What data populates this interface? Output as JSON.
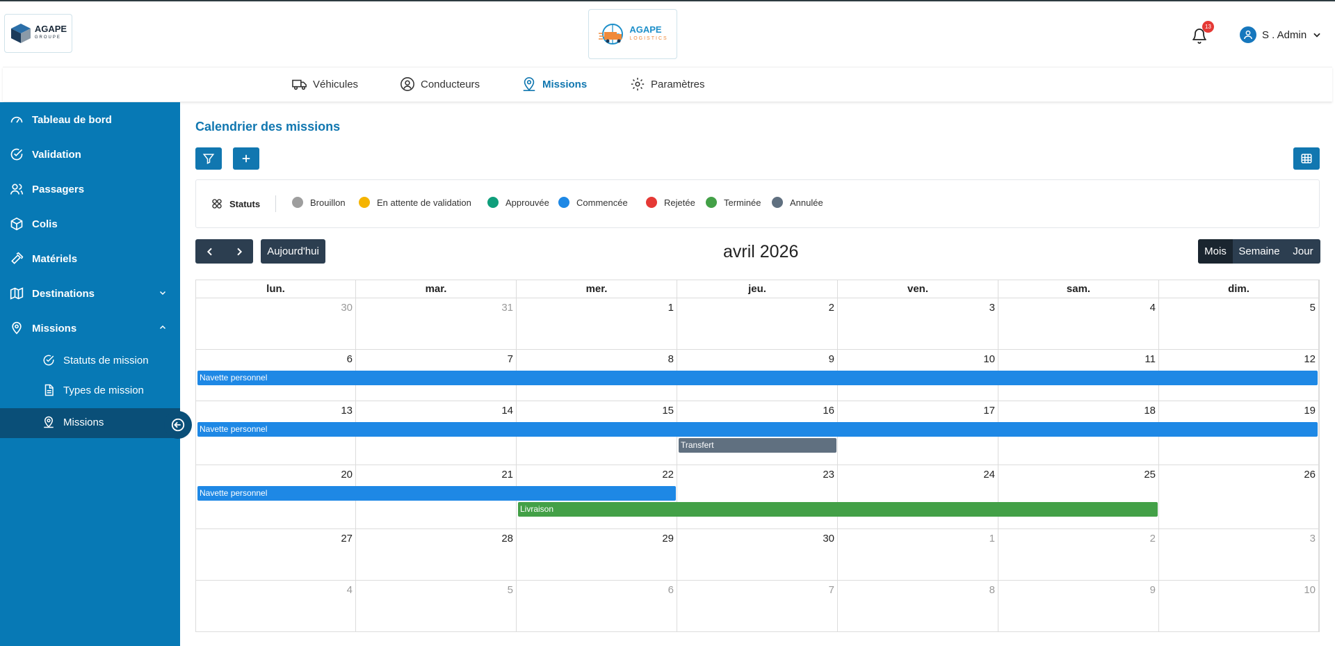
{
  "header": {
    "left_logo": {
      "name": "AGAPE",
      "sub": "GROUPE"
    },
    "center_logo": {
      "name": "AGAPE",
      "sub": "LOGISTICS"
    },
    "notifications_count": "13",
    "user_name": "S . Admin"
  },
  "topnav": [
    {
      "label": "Véhicules",
      "icon": "truck-icon"
    },
    {
      "label": "Conducteurs",
      "icon": "user-circle-icon"
    },
    {
      "label": "Missions",
      "icon": "map-pin-user-icon",
      "active": true
    },
    {
      "label": "Paramètres",
      "icon": "gear-icon"
    }
  ],
  "sidebar": {
    "items": [
      {
        "label": "Tableau de bord",
        "icon": "gauge-icon"
      },
      {
        "label": "Validation",
        "icon": "check-circle-icon"
      },
      {
        "label": "Passagers",
        "icon": "users-icon"
      },
      {
        "label": "Colis",
        "icon": "package-icon"
      },
      {
        "label": "Matériels",
        "icon": "hammer-icon"
      },
      {
        "label": "Destinations",
        "icon": "map-icon",
        "expandable": true
      },
      {
        "label": "Missions",
        "icon": "map-pin-user-icon",
        "expanded": true
      }
    ],
    "subitems": [
      {
        "label": "Statuts de mission",
        "icon": "check-circle-icon"
      },
      {
        "label": "Types de mission",
        "icon": "file-icon"
      },
      {
        "label": "Missions",
        "icon": "map-pin-user-icon",
        "active": true
      }
    ]
  },
  "main": {
    "title": "Calendrier des missions",
    "legend_title": "Statuts",
    "statuses": [
      {
        "label": "Brouillon",
        "color": "#9e9e9e"
      },
      {
        "label": "En attente de validation",
        "color": "#f5b400"
      },
      {
        "label": "Approuvée",
        "color": "#0f9e7b"
      },
      {
        "label": "Commencée",
        "color": "#1e88e5"
      },
      {
        "label": "Rejetée",
        "color": "#e53935"
      },
      {
        "label": "Terminée",
        "color": "#43a047"
      },
      {
        "label": "Annulée",
        "color": "#607080"
      }
    ]
  },
  "calendar": {
    "today_label": "Aujourd'hui",
    "title": "avril 2026",
    "views": [
      "Mois",
      "Semaine",
      "Jour"
    ],
    "active_view": "Mois",
    "weekdays": [
      "lun.",
      "mar.",
      "mer.",
      "jeu.",
      "ven.",
      "sam.",
      "dim."
    ],
    "weeks": [
      [
        "30",
        "31",
        "1",
        "2",
        "3",
        "4",
        "5"
      ],
      [
        "6",
        "7",
        "8",
        "9",
        "10",
        "11",
        "12"
      ],
      [
        "13",
        "14",
        "15",
        "16",
        "17",
        "18",
        "19"
      ],
      [
        "20",
        "21",
        "22",
        "23",
        "24",
        "25",
        "26"
      ],
      [
        "27",
        "28",
        "29",
        "30",
        "1",
        "2",
        "3"
      ],
      [
        "4",
        "5",
        "6",
        "7",
        "8",
        "9",
        "10"
      ]
    ],
    "events": [
      {
        "label": "Navette personnel",
        "week": 1,
        "start_col": 0,
        "end_col": 6,
        "slot": 0,
        "color": "#1e88e5"
      },
      {
        "label": "Navette personnel",
        "week": 2,
        "start_col": 0,
        "end_col": 6,
        "slot": 0,
        "color": "#1e88e5"
      },
      {
        "label": "Transfert",
        "week": 2,
        "start_col": 3,
        "end_col": 3,
        "slot": 1,
        "color": "#607080"
      },
      {
        "label": "Navette personnel",
        "week": 3,
        "start_col": 0,
        "end_col": 2,
        "slot": 0,
        "color": "#1e88e5"
      },
      {
        "label": "Livraison",
        "week": 3,
        "start_col": 2,
        "end_col": 5,
        "slot": 1,
        "color": "#43a047"
      }
    ]
  }
}
